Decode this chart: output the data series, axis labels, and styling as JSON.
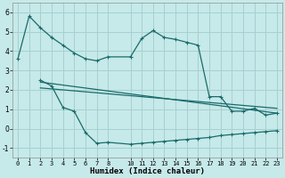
{
  "xlabel": "Humidex (Indice chaleur)",
  "background_color": "#c6e9e9",
  "grid_color": "#a8d0d0",
  "line_color": "#1a6b6b",
  "xlim": [
    -0.5,
    23.5
  ],
  "ylim": [
    -1.5,
    6.5
  ],
  "yticks": [
    -1,
    0,
    1,
    2,
    3,
    4,
    5,
    6
  ],
  "xticks": [
    0,
    1,
    2,
    3,
    4,
    5,
    6,
    7,
    8,
    10,
    11,
    12,
    13,
    14,
    15,
    16,
    17,
    18,
    19,
    20,
    21,
    22,
    23
  ],
  "line1_x": [
    0,
    1,
    2,
    3,
    4,
    5,
    6,
    7,
    8,
    10,
    11,
    12,
    13,
    14,
    15,
    16,
    17,
    18,
    19,
    20,
    21,
    22,
    23
  ],
  "line1_y": [
    3.6,
    5.8,
    5.2,
    4.7,
    4.3,
    3.9,
    3.6,
    3.5,
    3.7,
    3.7,
    4.65,
    5.05,
    4.7,
    4.6,
    4.45,
    4.3,
    1.65,
    1.65,
    0.9,
    0.9,
    1.05,
    0.7,
    0.8
  ],
  "line2_x": [
    2,
    3,
    4,
    5,
    6,
    7,
    8,
    10,
    11,
    12,
    13,
    14,
    15,
    16,
    17,
    18,
    19,
    20,
    21,
    22,
    23
  ],
  "line2_y": [
    2.5,
    2.2,
    1.1,
    0.9,
    -0.2,
    -0.75,
    -0.7,
    -0.8,
    -0.75,
    -0.7,
    -0.65,
    -0.6,
    -0.55,
    -0.5,
    -0.45,
    -0.35,
    -0.3,
    -0.25,
    -0.2,
    -0.15,
    -0.1
  ],
  "line3_x": [
    2,
    23
  ],
  "line3_y": [
    2.4,
    0.8
  ],
  "line4_x": [
    2,
    23
  ],
  "line4_y": [
    2.1,
    1.05
  ]
}
